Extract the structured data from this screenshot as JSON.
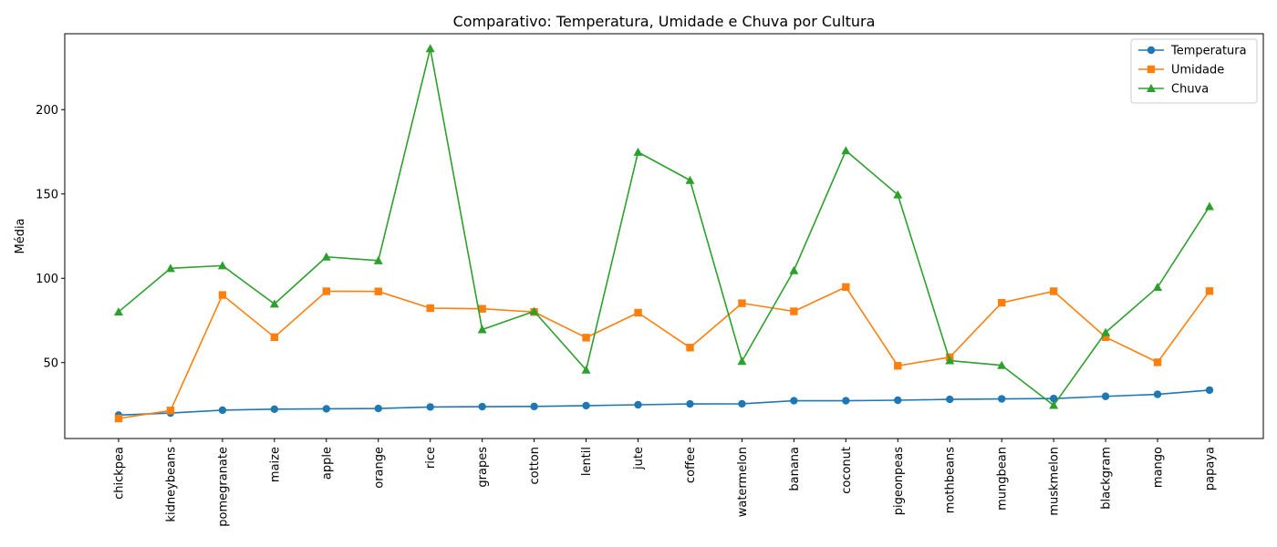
{
  "chart_data": {
    "type": "line",
    "title": "Comparativo: Temperatura, Umidade e Chuva por Cultura",
    "xlabel": "",
    "ylabel": "Média",
    "ylim": [
      5,
      245
    ],
    "yticks": [
      50,
      100,
      150,
      200
    ],
    "grid": false,
    "legend_position": "top-right",
    "categories": [
      "chickpea",
      "kidneybeans",
      "pomegranate",
      "maize",
      "apple",
      "orange",
      "rice",
      "grapes",
      "cotton",
      "lentil",
      "jute",
      "coffee",
      "watermelon",
      "banana",
      "coconut",
      "pigeonpeas",
      "mothbeans",
      "mungbean",
      "muskmelon",
      "blackgram",
      "mango",
      "papaya"
    ],
    "series": [
      {
        "name": "Temperatura",
        "color": "#1f77b4",
        "marker": "circle",
        "values": [
          18.9,
          20.1,
          21.8,
          22.4,
          22.6,
          22.8,
          23.7,
          23.9,
          24.0,
          24.5,
          25.0,
          25.5,
          25.6,
          27.4,
          27.4,
          27.7,
          28.2,
          28.5,
          28.7,
          30.0,
          31.2,
          33.7
        ]
      },
      {
        "name": "Umidade",
        "color": "#ff7f0e",
        "marker": "square",
        "values": [
          16.9,
          21.6,
          90.1,
          65.1,
          92.3,
          92.2,
          82.3,
          81.9,
          80.0,
          64.8,
          79.6,
          58.9,
          85.2,
          80.4,
          94.8,
          48.1,
          53.2,
          85.5,
          92.3,
          65.1,
          50.2,
          92.4
        ]
      },
      {
        "name": "Chuva",
        "color": "#2ca02c",
        "marker": "triangle",
        "values": [
          80.1,
          105.9,
          107.5,
          84.8,
          112.7,
          110.5,
          236.2,
          69.6,
          80.4,
          45.7,
          174.8,
          158.1,
          50.8,
          104.6,
          175.7,
          149.5,
          51.2,
          48.4,
          24.7,
          67.9,
          94.7,
          142.6
        ]
      }
    ]
  }
}
